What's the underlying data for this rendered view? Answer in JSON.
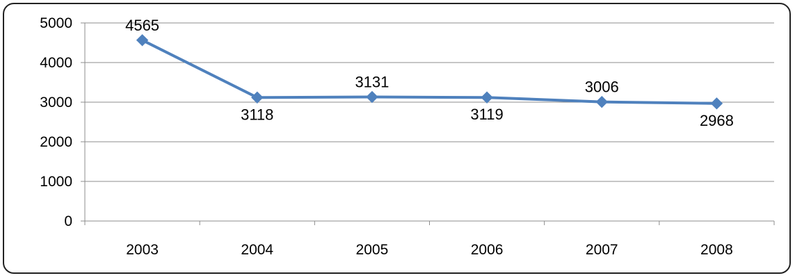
{
  "chart_data": {
    "type": "line",
    "categories": [
      "2003",
      "2004",
      "2005",
      "2006",
      "2007",
      "2008"
    ],
    "series": [
      {
        "values": [
          4565,
          3118,
          3131,
          3119,
          3006,
          2968
        ],
        "data_labels": [
          "4565",
          "3118",
          "3131",
          "3119",
          "3006",
          "2968"
        ],
        "color": "#4F81BD",
        "marker": "diamond"
      }
    ],
    "ylim": [
      0,
      5000
    ],
    "yticks": [
      0,
      1000,
      2000,
      3000,
      4000,
      5000
    ],
    "ytick_labels": [
      "0",
      "1000",
      "2000",
      "3000",
      "4000",
      "5000"
    ],
    "grid": "horizontal",
    "legend": "none",
    "data_label_positions": [
      "above",
      "below",
      "above",
      "below",
      "above",
      "below"
    ]
  }
}
